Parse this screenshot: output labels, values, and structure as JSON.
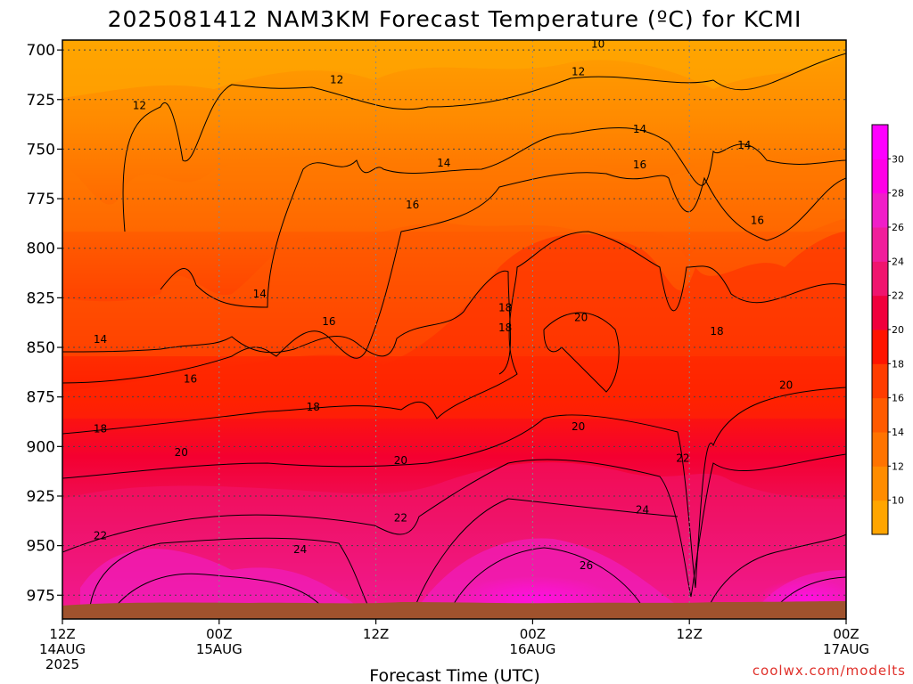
{
  "chart_data": {
    "type": "heatmap",
    "title": "2025081412 NAM3KM Forecast Temperature (ºC) for KCMI",
    "xlabel": "Forecast Time (UTC)",
    "ylabel": "",
    "y_ticks": [
      "700",
      "725",
      "750",
      "775",
      "800",
      "825",
      "850",
      "875",
      "900",
      "925",
      "950",
      "975"
    ],
    "y_range": [
      695,
      987
    ],
    "x_ticks": [
      {
        "hour": 0,
        "lines": [
          "12Z",
          "14AUG",
          "2025"
        ]
      },
      {
        "hour": 12,
        "lines": [
          "00Z",
          "15AUG"
        ]
      },
      {
        "hour": 24,
        "lines": [
          "12Z"
        ]
      },
      {
        "hour": 36,
        "lines": [
          "00Z",
          "16AUG"
        ]
      },
      {
        "hour": 48,
        "lines": [
          "12Z"
        ]
      },
      {
        "hour": 60,
        "lines": [
          "00Z",
          "17AUG"
        ]
      }
    ],
    "x_range": [
      0,
      60
    ],
    "grid": true,
    "colorbar": {
      "labels": [
        "10",
        "12",
        "14",
        "16",
        "18",
        "20",
        "22",
        "24",
        "26",
        "28",
        "30"
      ],
      "colors": [
        "#ffa500",
        "#ff8c00",
        "#ff7300",
        "#ff5a00",
        "#ff3c00",
        "#ff1400",
        "#f0003c",
        "#f0146e",
        "#f01e9b",
        "#f01ec8",
        "#ff00e6",
        "#ff00ff"
      ]
    },
    "contour_labels": [
      {
        "hour": 41,
        "p": 697,
        "text": "10"
      },
      {
        "hour": 5.9,
        "p": 728,
        "text": "12"
      },
      {
        "hour": 21,
        "p": 715,
        "text": "12"
      },
      {
        "hour": 39.5,
        "p": 711,
        "text": "12"
      },
      {
        "hour": 44.2,
        "p": 740,
        "text": "14"
      },
      {
        "hour": 52.2,
        "p": 748,
        "text": "14"
      },
      {
        "hour": 29.2,
        "p": 757,
        "text": "14"
      },
      {
        "hour": 44.2,
        "p": 758,
        "text": "16"
      },
      {
        "hour": 26.8,
        "p": 778,
        "text": "16"
      },
      {
        "hour": 53.2,
        "p": 786,
        "text": "16"
      },
      {
        "hour": 15.1,
        "p": 823,
        "text": "14"
      },
      {
        "hour": 2.9,
        "p": 846,
        "text": "14"
      },
      {
        "hour": 20.4,
        "p": 837,
        "text": "16"
      },
      {
        "hour": 9.8,
        "p": 866,
        "text": "16"
      },
      {
        "hour": 33.9,
        "p": 830,
        "text": "18"
      },
      {
        "hour": 33.9,
        "p": 840,
        "text": "18"
      },
      {
        "hour": 50.1,
        "p": 842,
        "text": "18"
      },
      {
        "hour": 39.7,
        "p": 835,
        "text": "20"
      },
      {
        "hour": 19.2,
        "p": 880,
        "text": "18"
      },
      {
        "hour": 2.9,
        "p": 891,
        "text": "18"
      },
      {
        "hour": 39.5,
        "p": 890,
        "text": "20"
      },
      {
        "hour": 55.4,
        "p": 869,
        "text": "20"
      },
      {
        "hour": 9.1,
        "p": 903,
        "text": "20"
      },
      {
        "hour": 25.9,
        "p": 907,
        "text": "20"
      },
      {
        "hour": 47.5,
        "p": 906,
        "text": "22"
      },
      {
        "hour": 2.9,
        "p": 945,
        "text": "22"
      },
      {
        "hour": 25.9,
        "p": 936,
        "text": "22"
      },
      {
        "hour": 44.4,
        "p": 932,
        "text": "24"
      },
      {
        "hour": 18.2,
        "p": 952,
        "text": "24"
      },
      {
        "hour": 40.1,
        "p": 960,
        "text": "26"
      }
    ]
  },
  "credit": "coolwx.com/modelts"
}
